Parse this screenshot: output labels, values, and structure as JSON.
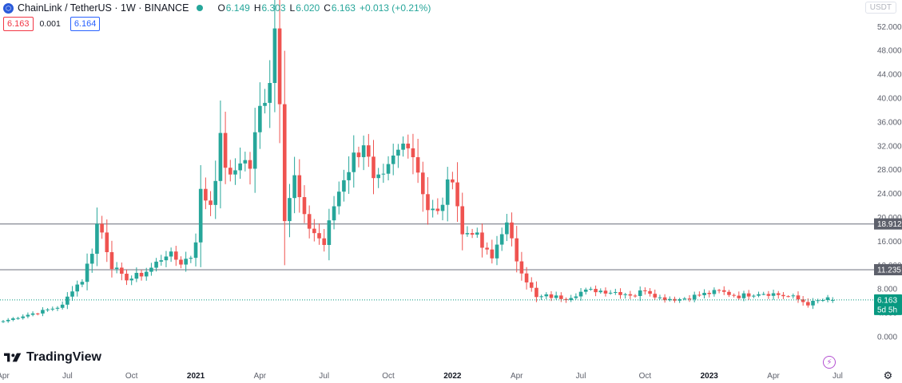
{
  "header": {
    "symbol_title": "ChainLink / TetherUS · 1W · BINANCE",
    "ohlc": [
      {
        "k": "O",
        "v": "6.149"
      },
      {
        "k": "H",
        "v": "6.303"
      },
      {
        "k": "L",
        "v": "6.020"
      },
      {
        "k": "C",
        "v": "6.163"
      },
      {
        "k": "",
        "v": "+0.013 (+0.21%)"
      }
    ],
    "sell_price": "6.163",
    "spread": "0.001",
    "buy_price": "6.164",
    "currency": "USDT"
  },
  "brand": {
    "name": "TradingView"
  },
  "colors": {
    "up": "#26a69a",
    "down": "#ef5350",
    "hline": "#9598a1",
    "price": "#089981"
  },
  "chart_data": {
    "type": "candlestick",
    "title": "ChainLink / TetherUS · 1W · BINANCE",
    "ylim": [
      -2,
      54
    ],
    "y_ticks": [
      "0.000",
      "4.000",
      "8.000",
      "12.000",
      "16.000",
      "20.000",
      "24.000",
      "28.000",
      "32.000",
      "36.000",
      "40.000",
      "44.000",
      "48.000",
      "52.000"
    ],
    "x_ticks": [
      {
        "label": "Apr",
        "year": false
      },
      {
        "label": "Jul",
        "year": false
      },
      {
        "label": "Oct",
        "year": false
      },
      {
        "label": "2021",
        "year": true
      },
      {
        "label": "Apr",
        "year": false
      },
      {
        "label": "Jul",
        "year": false
      },
      {
        "label": "Oct",
        "year": false
      },
      {
        "label": "2022",
        "year": true
      },
      {
        "label": "Apr",
        "year": false
      },
      {
        "label": "Jul",
        "year": false
      },
      {
        "label": "Oct",
        "year": false
      },
      {
        "label": "2023",
        "year": true
      },
      {
        "label": "Apr",
        "year": false
      },
      {
        "label": "Jul",
        "year": false
      }
    ],
    "x_tick_index": [
      0,
      13,
      26,
      39,
      52,
      65,
      78,
      91,
      104,
      117,
      130,
      143,
      156,
      169
    ],
    "horizontal_lines": [
      {
        "label": "18.912",
        "value": 18.912
      },
      {
        "label": "11.235",
        "value": 11.235
      }
    ],
    "last_price": {
      "label": "6.163",
      "value": 6.163,
      "countdown": "5d 5h"
    },
    "close_waypoints": [
      [
        0,
        2.6
      ],
      [
        4,
        3.5
      ],
      [
        8,
        4.3
      ],
      [
        12,
        5.2
      ],
      [
        14,
        8.0
      ],
      [
        16,
        9.5
      ],
      [
        18,
        14.5
      ],
      [
        19,
        18.8
      ],
      [
        20,
        17.5
      ],
      [
        22,
        12.0
      ],
      [
        24,
        10.0
      ],
      [
        26,
        9.8
      ],
      [
        28,
        10.5
      ],
      [
        30,
        11.5
      ],
      [
        33,
        14.0
      ],
      [
        36,
        12.5
      ],
      [
        38,
        13.5
      ],
      [
        39,
        16.5
      ],
      [
        40,
        24.0
      ],
      [
        42,
        22.5
      ],
      [
        44,
        32.5
      ],
      [
        46,
        26.0
      ],
      [
        48,
        30.0
      ],
      [
        50,
        28.5
      ],
      [
        52,
        38.0
      ],
      [
        54,
        44.0
      ],
      [
        55,
        52.0
      ],
      [
        56,
        41.0
      ],
      [
        57,
        20.5
      ],
      [
        59,
        26.5
      ],
      [
        61,
        19.5
      ],
      [
        63,
        17.5
      ],
      [
        65,
        15.5
      ],
      [
        67,
        22.0
      ],
      [
        69,
        27.0
      ],
      [
        71,
        30.0
      ],
      [
        73,
        33.0
      ],
      [
        75,
        25.5
      ],
      [
        77,
        26.0
      ],
      [
        79,
        29.5
      ],
      [
        82,
        33.5
      ],
      [
        84,
        28.0
      ],
      [
        86,
        21.5
      ],
      [
        88,
        20.5
      ],
      [
        90,
        25.0
      ],
      [
        91,
        27.5
      ],
      [
        93,
        17.0
      ],
      [
        95,
        18.0
      ],
      [
        97,
        15.0
      ],
      [
        99,
        13.0
      ],
      [
        101,
        18.0
      ],
      [
        102,
        18.5
      ],
      [
        104,
        13.0
      ],
      [
        106,
        9.5
      ],
      [
        108,
        6.5
      ],
      [
        110,
        6.8
      ],
      [
        114,
        6.5
      ],
      [
        117,
        7.5
      ],
      [
        120,
        7.8
      ],
      [
        124,
        7.5
      ],
      [
        128,
        7.0
      ],
      [
        130,
        8.0
      ],
      [
        133,
        6.5
      ],
      [
        137,
        6.3
      ],
      [
        141,
        7.0
      ],
      [
        145,
        7.6
      ],
      [
        149,
        6.8
      ],
      [
        153,
        7.4
      ],
      [
        156,
        7.2
      ],
      [
        160,
        6.6
      ],
      [
        163,
        5.5
      ],
      [
        165,
        6.0
      ],
      [
        167,
        6.3
      ],
      [
        168,
        6.163
      ]
    ]
  }
}
